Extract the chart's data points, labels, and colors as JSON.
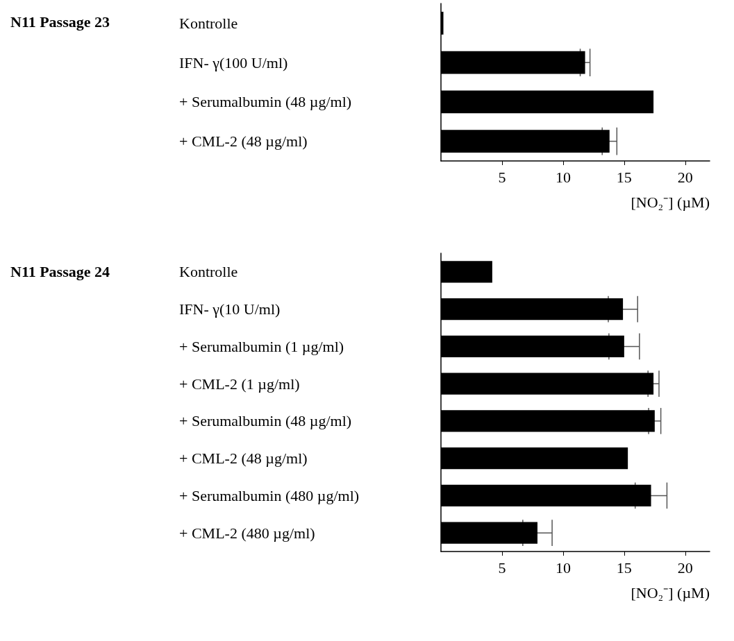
{
  "chart_data": [
    {
      "type": "bar",
      "orientation": "horizontal",
      "title": "N11 Passage 23",
      "xlabel": "[NO₂⁻] (µM)",
      "categories": [
        "Kontrolle",
        "IFN- γ(100 U/ml)",
        "+ Serumalbumin (48 µg/ml)",
        "+ CML-2 (48 µg/ml)"
      ],
      "values": [
        0.2,
        11.8,
        17.4,
        13.8
      ],
      "errors": [
        null,
        0.4,
        null,
        0.6
      ],
      "color": "#000000",
      "xlim": [
        0,
        22
      ],
      "xticks": [
        5,
        10,
        15,
        20
      ]
    },
    {
      "type": "bar",
      "orientation": "horizontal",
      "title": "N11 Passage 24",
      "xlabel": "[NO₂⁻] (µM)",
      "categories": [
        "Kontrolle",
        "IFN- γ(10 U/ml)",
        "+ Serumalbumin (1 µg/ml)",
        "+ CML-2 (1 µg/ml)",
        "+ Serumalbumin (48 µg/ml)",
        "+ CML-2 (48 µg/ml)",
        "+ Serumalbumin (480 µg/ml)",
        "+ CML-2 (480 µg/ml)"
      ],
      "values": [
        4.2,
        14.9,
        15.0,
        17.4,
        17.5,
        15.3,
        17.2,
        7.9
      ],
      "errors": [
        null,
        1.2,
        1.25,
        0.45,
        0.5,
        null,
        1.3,
        1.2
      ],
      "color": "#000000",
      "xlim": [
        0,
        22
      ],
      "xticks": [
        5,
        10,
        15,
        20
      ]
    }
  ]
}
